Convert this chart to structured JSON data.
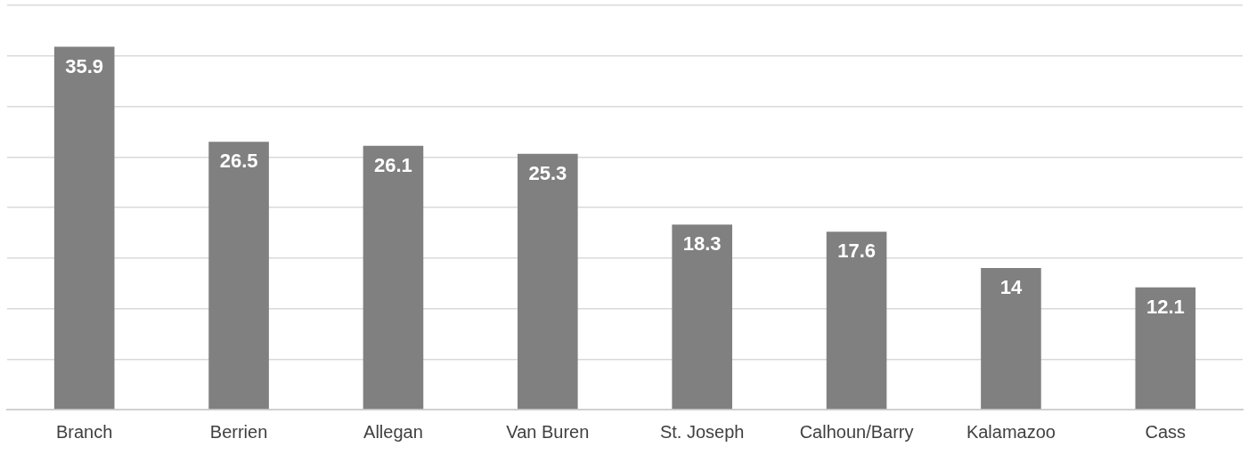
{
  "chart_data": {
    "type": "bar",
    "categories": [
      "Branch",
      "Berrien",
      "Allegan",
      "Van Buren",
      "St. Joseph",
      "Calhoun/Barry",
      "Kalamazoo",
      "Cass"
    ],
    "values": [
      35.9,
      26.5,
      26.1,
      25.3,
      18.3,
      17.6,
      14,
      12.1
    ],
    "color": "#808080",
    "ylim": [
      0,
      40
    ],
    "yticks": [
      {
        "value": 0,
        "label": null
      },
      {
        "value": 5,
        "label": null
      },
      {
        "value": 10,
        "label": null
      },
      {
        "value": 15,
        "label": null
      },
      {
        "value": 20,
        "label": null
      },
      {
        "value": 25,
        "label": null
      },
      {
        "value": 30,
        "label": null
      },
      {
        "value": 35,
        "label": null
      },
      {
        "value": 40,
        "label": null
      }
    ],
    "tick_labels": "x",
    "grid": "y",
    "legend": false,
    "data_labels": true
  }
}
